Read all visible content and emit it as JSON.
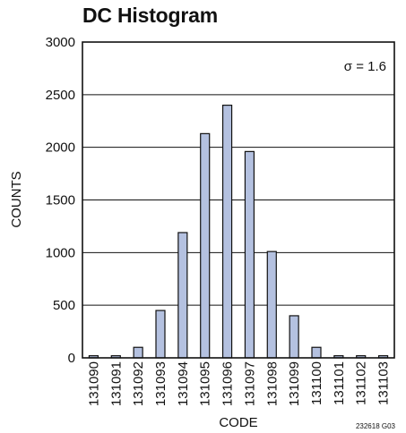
{
  "chart_data": {
    "type": "bar",
    "title": "DC Histogram",
    "xlabel": "CODE",
    "ylabel": "COUNTS",
    "categories": [
      "131090",
      "131091",
      "131092",
      "131093",
      "131094",
      "131095",
      "131096",
      "131097",
      "131098",
      "131099",
      "131100",
      "131101",
      "131102",
      "131103"
    ],
    "values": [
      20,
      20,
      100,
      450,
      1190,
      2130,
      2400,
      1960,
      1010,
      400,
      100,
      20,
      20,
      20
    ],
    "ylim": [
      0,
      3000
    ],
    "yticks": [
      0,
      500,
      1000,
      1500,
      2000,
      2500,
      3000
    ],
    "grid": "horizontal",
    "annotation": "σ = 1.6",
    "figure_id": "232618 G03",
    "colors": {
      "bar_fill": "#b4c1e0",
      "bar_stroke": "#111111",
      "grid": "#111111",
      "frame": "#111111"
    }
  }
}
